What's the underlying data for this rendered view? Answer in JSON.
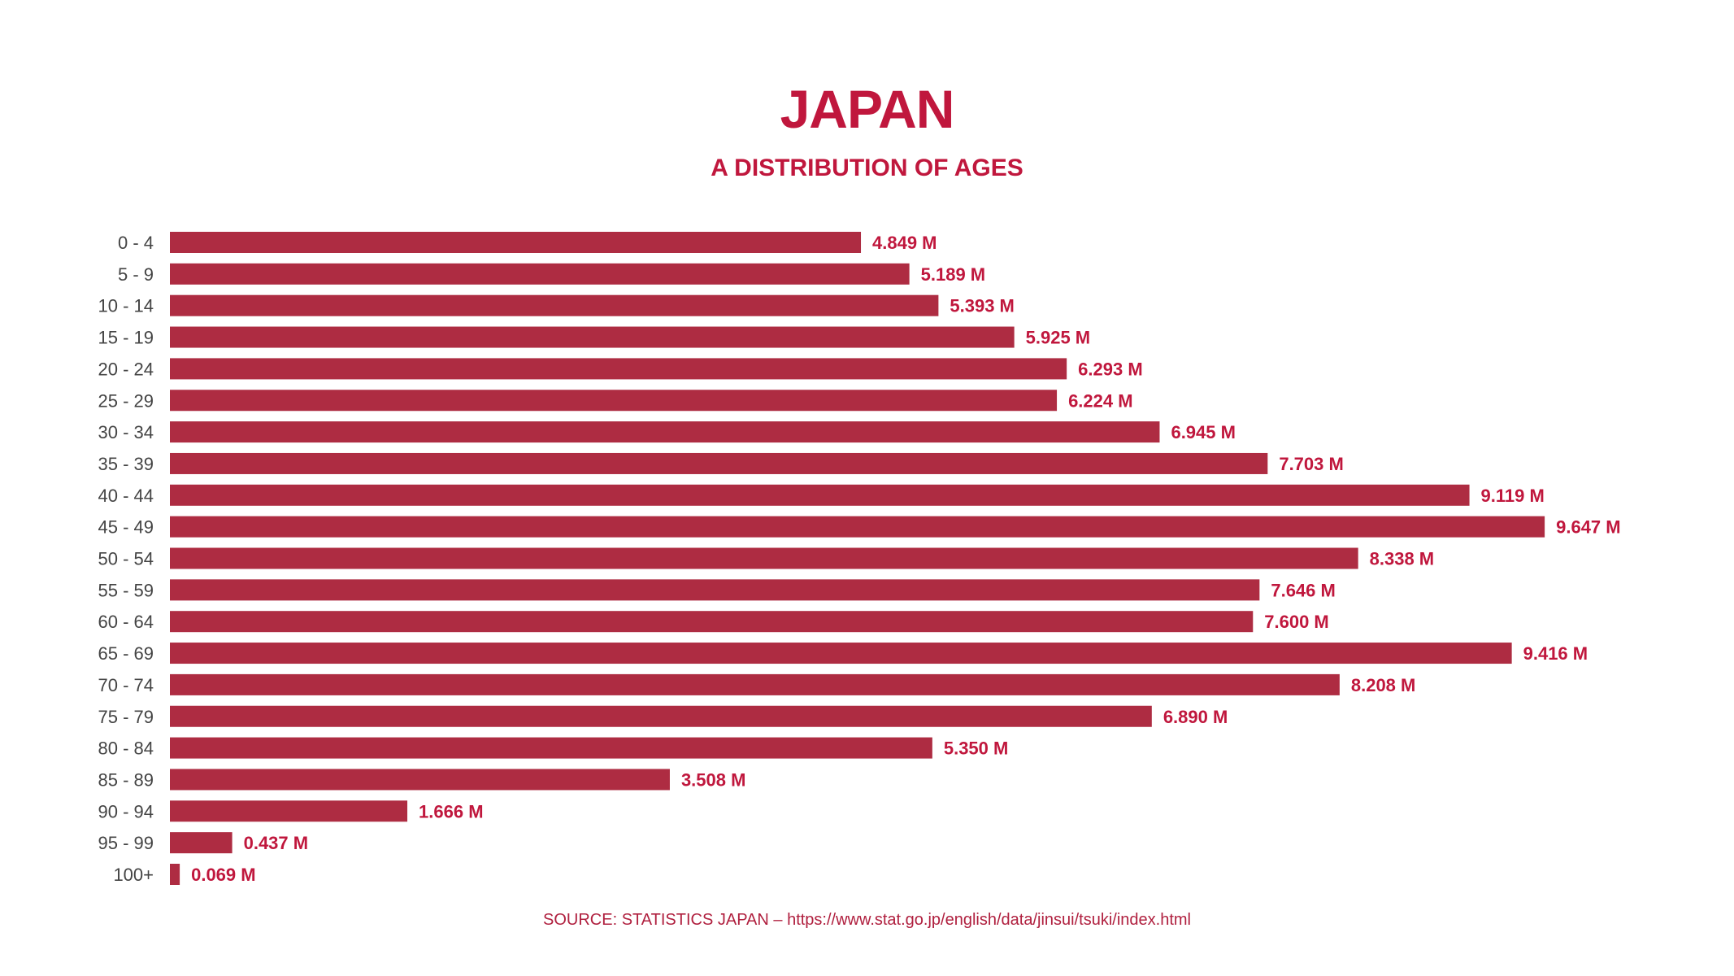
{
  "chart_data": {
    "type": "bar",
    "orientation": "horizontal",
    "title": "JAPAN",
    "subtitle": "A DISTRIBUTION OF AGES",
    "categories": [
      "0 - 4",
      "5 - 9",
      "10 - 14",
      "15 - 19",
      "20 - 24",
      "25 - 29",
      "30 - 34",
      "35 - 39",
      "40 - 44",
      "45 - 49",
      "50 - 54",
      "55 - 59",
      "60 - 64",
      "65 - 69",
      "70 - 74",
      "75 - 79",
      "80 - 84",
      "85 - 89",
      "90 - 94",
      "95 - 99",
      "100+"
    ],
    "values": [
      4.849,
      5.189,
      5.393,
      5.925,
      6.293,
      6.224,
      6.945,
      7.703,
      9.119,
      9.647,
      8.338,
      7.646,
      7.6,
      9.416,
      8.208,
      6.89,
      5.35,
      3.508,
      1.666,
      0.437,
      0.069
    ],
    "data_labels": [
      "4.849 M",
      "5.189 M",
      "5.393 M",
      "5.925 M",
      "6.293 M",
      "6.224 M",
      "6.945 M",
      "7.703 M",
      "9.119 M",
      "9.647 M",
      "8.338 M",
      "7.646 M",
      "7.600 M",
      "9.416 M",
      "8.208 M",
      "6.890 M",
      "5.350 M",
      "3.508 M",
      "1.666 M",
      "0.437 M",
      "0.069 M"
    ],
    "unit": "M",
    "xlabel": "",
    "ylabel": "",
    "grid": false,
    "legend": "none",
    "colors": {
      "bar": "#ae2c42",
      "title": "#c0173d",
      "label": "#c0173d",
      "category": "#444444"
    }
  },
  "source": "SOURCE: STATISTICS JAPAN – https://www.stat.go.jp/english/data/jinsui/tsuki/index.html"
}
